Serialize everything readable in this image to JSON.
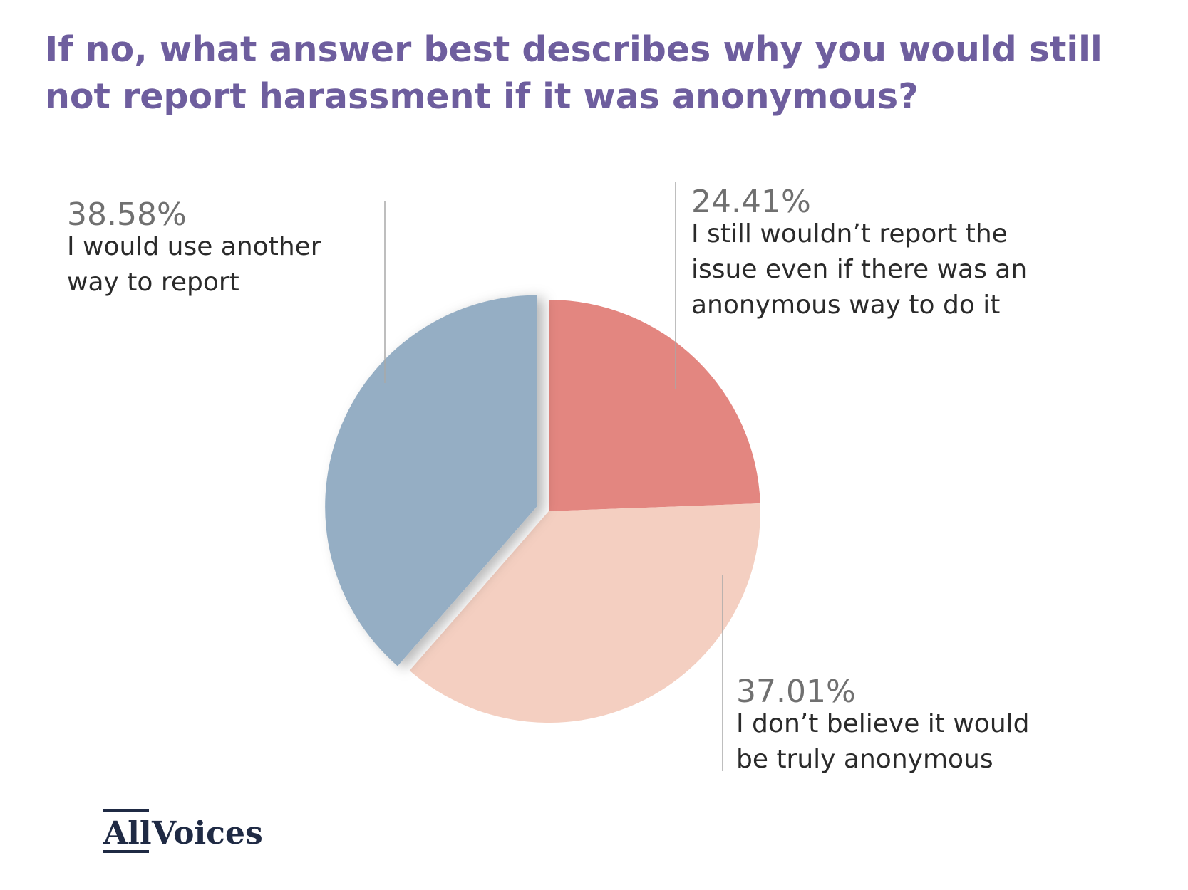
{
  "chart_data": {
    "type": "pie",
    "title_lines": [
      "If no, what answer best describes why you would still",
      "not report harassment if it was anonymous?"
    ],
    "slices": [
      {
        "value": 24.41,
        "pct_label": "24.41%",
        "label_lines": [
          "I still wouldn’t report the",
          "issue even if there was an",
          "anonymous way to do it"
        ],
        "color": "#e38680"
      },
      {
        "value": 37.01,
        "pct_label": "37.01%",
        "label_lines": [
          "I don’t believe it would",
          "be truly anonymous"
        ],
        "color": "#f4cfc1"
      },
      {
        "value": 38.58,
        "pct_label": "38.58%",
        "label_lines": [
          "I would use another",
          "way to report"
        ],
        "color": "#95aec4",
        "exploded": true
      }
    ],
    "legend": "none"
  },
  "colors": {
    "title": "#6e5e9e",
    "pct_text": "#707070",
    "label_text": "#2a2a2a",
    "leader_line": "#a8a8a8",
    "logo": "#1f2a44"
  },
  "logo": {
    "part1": "All",
    "part2": "Voices"
  }
}
